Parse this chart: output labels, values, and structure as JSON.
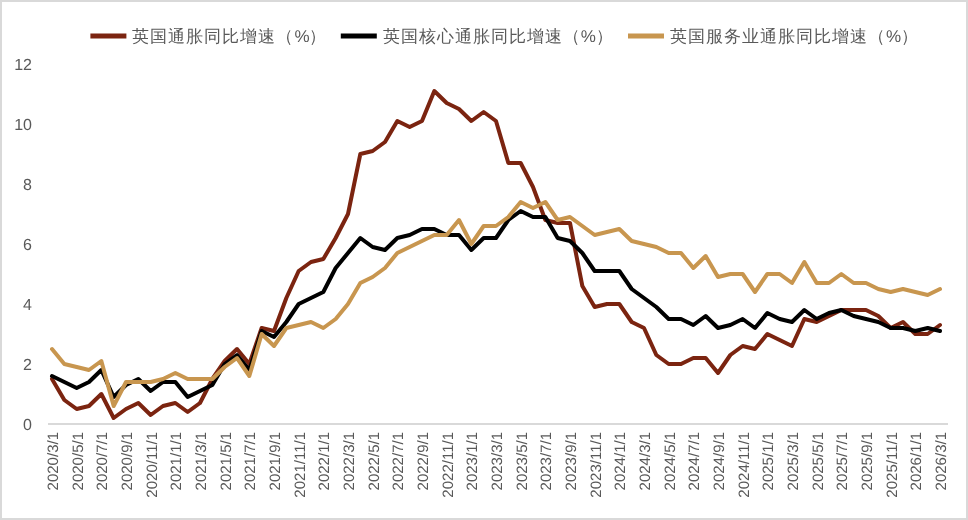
{
  "chart_data": {
    "type": "line",
    "categories": [
      "2020/3/1",
      null,
      "2020/5/1",
      null,
      "2020/7/1",
      null,
      "2020/9/1",
      null,
      "2020/11/1",
      null,
      "2021/1/1",
      null,
      "2021/3/1",
      null,
      "2021/5/1",
      null,
      "2021/7/1",
      null,
      "2021/9/1",
      null,
      "2021/11/1",
      null,
      "2022/1/1",
      null,
      "2022/3/1",
      null,
      "2022/5/1",
      null,
      "2022/7/1",
      null,
      "2022/9/1",
      null,
      "2022/11/1",
      null,
      "2023/1/1",
      null,
      "2023/3/1",
      null,
      "2023/5/1",
      null,
      "2023/7/1",
      null,
      "2023/9/1",
      null,
      "2023/11/1",
      null,
      "2024/1/1",
      null,
      "2024/3/1",
      null,
      "2024/5/1",
      null,
      "2024/7/1",
      null,
      "2024/9/1",
      null,
      "2024/11/1",
      null,
      "2025/1/1",
      null,
      "2025/3/1",
      null,
      "2025/5/1",
      null,
      "2025/7/1",
      null,
      "2025/9/1",
      null,
      "2025/11/1",
      null,
      "2026/1/1",
      null,
      "2026/3/1"
    ],
    "series": [
      {
        "name": "英国通胀同比增速（%）",
        "color": "#7b2410",
        "values": [
          1.5,
          0.8,
          0.5,
          0.6,
          1.0,
          0.2,
          0.5,
          0.7,
          0.3,
          0.6,
          0.7,
          0.4,
          0.7,
          1.5,
          2.1,
          2.5,
          2.0,
          3.2,
          3.1,
          4.2,
          5.1,
          5.4,
          5.5,
          6.2,
          7.0,
          9.0,
          9.1,
          9.4,
          10.1,
          9.9,
          10.1,
          11.1,
          10.7,
          10.5,
          10.1,
          10.4,
          10.1,
          8.7,
          8.7,
          7.9,
          6.8,
          6.7,
          6.7,
          4.6,
          3.9,
          4.0,
          4.0,
          3.4,
          3.2,
          2.3,
          2.0,
          2.0,
          2.2,
          2.2,
          1.7,
          2.3,
          2.6,
          2.5,
          3.0,
          2.8,
          2.6,
          3.5,
          3.4,
          3.6,
          3.8,
          3.8,
          3.8,
          3.6,
          3.2,
          3.4,
          3.0,
          3.0,
          3.3
        ]
      },
      {
        "name": "英国核心通胀同比增速（%）",
        "color": "#000000",
        "values": [
          1.6,
          1.4,
          1.2,
          1.4,
          1.8,
          0.9,
          1.3,
          1.5,
          1.1,
          1.4,
          1.4,
          0.9,
          1.1,
          1.3,
          2.0,
          2.3,
          1.8,
          3.1,
          2.9,
          3.4,
          4.0,
          4.2,
          4.4,
          5.2,
          5.7,
          6.2,
          5.9,
          5.8,
          6.2,
          6.3,
          6.5,
          6.5,
          6.3,
          6.3,
          5.8,
          6.2,
          6.2,
          6.8,
          7.1,
          6.9,
          6.9,
          6.2,
          6.1,
          5.7,
          5.1,
          5.1,
          5.1,
          4.5,
          4.2,
          3.9,
          3.5,
          3.5,
          3.3,
          3.6,
          3.2,
          3.3,
          3.5,
          3.2,
          3.7,
          3.5,
          3.4,
          3.8,
          3.5,
          3.7,
          3.8,
          3.6,
          3.5,
          3.4,
          3.2,
          3.2,
          3.1,
          3.2,
          3.1
        ]
      },
      {
        "name": "英国服务业通胀同比增速（%）",
        "color": "#c8964f",
        "values": [
          2.5,
          2.0,
          1.9,
          1.8,
          2.1,
          0.6,
          1.4,
          1.4,
          1.4,
          1.5,
          1.7,
          1.5,
          1.5,
          1.5,
          1.9,
          2.2,
          1.6,
          3.0,
          2.6,
          3.2,
          3.3,
          3.4,
          3.2,
          3.5,
          4.0,
          4.7,
          4.9,
          5.2,
          5.7,
          5.9,
          6.1,
          6.3,
          6.3,
          6.8,
          6.0,
          6.6,
          6.6,
          6.9,
          7.4,
          7.2,
          7.4,
          6.8,
          6.9,
          6.6,
          6.3,
          6.4,
          6.5,
          6.1,
          6.0,
          5.9,
          5.7,
          5.7,
          5.2,
          5.6,
          4.9,
          5.0,
          5.0,
          4.4,
          5.0,
          5.0,
          4.7,
          5.4,
          4.7,
          4.7,
          5.0,
          4.7,
          4.7,
          4.5,
          4.4,
          4.5,
          4.4,
          4.3,
          4.5
        ]
      }
    ],
    "ylim": [
      0,
      12
    ],
    "yticks": [
      0,
      2,
      4,
      6,
      8,
      10,
      12
    ],
    "legend": "top",
    "grid": false
  }
}
